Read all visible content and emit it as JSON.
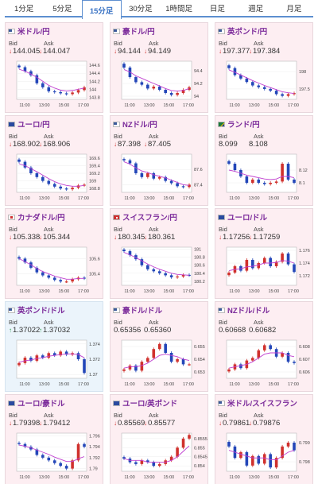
{
  "tabs": [
    "1分足",
    "5分足",
    "15分足",
    "30分足",
    "1時間足",
    "日足",
    "週足",
    "月足"
  ],
  "active_tab": 2,
  "labels": {
    "bid": "Bid",
    "ask": "Ask"
  },
  "time_ticks": [
    "11:00",
    "13:00",
    "15:00",
    "17:00"
  ],
  "colors": {
    "up": "#d0312d",
    "down": "#2346b8",
    "ma": "#c040d0",
    "price_up": "#2a9d4a",
    "price_down": "#d0312d",
    "title": "#7b2a9a",
    "card_bg": "#fdeef2",
    "card_bg_highlight": "#ebf4fb"
  },
  "cards": [
    {
      "title": "米ドル/円",
      "flag": "us",
      "dir": "down",
      "bid": "144.045",
      "ask": "144.047",
      "ticks": [
        "144.6",
        "144.4",
        "144.2",
        "144",
        "143.8"
      ],
      "ymin": 143.75,
      "ymax": 144.7,
      "prices": [
        144.55,
        144.45,
        144.35,
        144.15,
        144.05,
        143.95,
        143.93,
        143.9,
        143.88,
        143.92,
        143.98,
        144.05
      ],
      "ma": [
        144.5,
        144.45,
        144.38,
        144.3,
        144.2,
        144.1,
        144.03,
        143.98,
        143.96,
        143.97,
        144.0,
        144.03
      ]
    },
    {
      "title": "豪ドル/円",
      "flag": "au",
      "dir": "down",
      "bid": "94.144",
      "ask": "94.149",
      "ticks": [
        "94.4",
        "94.2",
        "94"
      ],
      "ymin": 93.95,
      "ymax": 94.55,
      "prices": [
        94.45,
        94.3,
        94.22,
        94.18,
        94.12,
        94.15,
        94.1,
        94.05,
        94.02,
        94.05,
        94.1,
        94.14
      ],
      "ma": [
        94.42,
        94.38,
        94.32,
        94.28,
        94.24,
        94.2,
        94.16,
        94.12,
        94.09,
        94.08,
        94.09,
        94.12
      ]
    },
    {
      "title": "英ポンド/円",
      "flag": "uk",
      "dir": "down",
      "bid": "197.377",
      "ask": "197.384",
      "ticks": [
        "198",
        "197.5"
      ],
      "ymin": 197.2,
      "ymax": 198.3,
      "prices": [
        198.1,
        197.9,
        197.8,
        197.7,
        197.6,
        197.55,
        197.5,
        197.45,
        197.35,
        197.3,
        197.35,
        197.38
      ],
      "ma": [
        198.05,
        197.98,
        197.9,
        197.82,
        197.74,
        197.67,
        197.6,
        197.54,
        197.48,
        197.42,
        197.39,
        197.37
      ]
    },
    {
      "title": "ユーロ/円",
      "flag": "eu",
      "dir": "down",
      "bid": "168.902",
      "ask": "168.906",
      "ticks": [
        "169.6",
        "169.4",
        "169.2",
        "169",
        "168.8"
      ],
      "ymin": 168.7,
      "ymax": 169.7,
      "prices": [
        169.5,
        169.35,
        169.2,
        169.1,
        169.0,
        168.92,
        168.85,
        168.8,
        168.78,
        168.82,
        168.88,
        168.9
      ],
      "ma": [
        169.45,
        169.4,
        169.32,
        169.24,
        169.15,
        169.06,
        168.98,
        168.92,
        168.88,
        168.86,
        168.86,
        168.88
      ]
    },
    {
      "title": "NZドル/円",
      "flag": "nz",
      "dir": "down",
      "bid": "87.398",
      "ask": "87.405",
      "ticks": [
        "87.6",
        "87.4"
      ],
      "ymin": 87.3,
      "ymax": 87.8,
      "prices": [
        87.72,
        87.68,
        87.55,
        87.5,
        87.55,
        87.48,
        87.5,
        87.45,
        87.42,
        87.38,
        87.37,
        87.4
      ],
      "ma": [
        87.7,
        87.67,
        87.62,
        87.58,
        87.56,
        87.53,
        87.51,
        87.49,
        87.46,
        87.43,
        87.4,
        87.39
      ]
    },
    {
      "title": "ランド/円",
      "flag": "za",
      "dir": "none",
      "bid": "8.099",
      "ask": "8.108",
      "ticks": [
        "8.12",
        "8.1"
      ],
      "ymin": 8.085,
      "ymax": 8.145,
      "prices": [
        8.13,
        8.12,
        8.11,
        8.1,
        8.105,
        8.1,
        8.098,
        8.1,
        8.102,
        8.13,
        8.105,
        8.1
      ],
      "ma": [
        8.12,
        8.118,
        8.115,
        8.112,
        8.11,
        8.108,
        8.106,
        8.105,
        8.106,
        8.11,
        8.11,
        8.108
      ]
    },
    {
      "title": "カナダドル/円",
      "flag": "ca",
      "dir": "down",
      "bid": "105.338",
      "ask": "105.344",
      "ticks": [
        "105.6",
        "105.4"
      ],
      "ymin": 105.25,
      "ymax": 105.75,
      "prices": [
        105.6,
        105.55,
        105.48,
        105.42,
        105.38,
        105.35,
        105.32,
        105.3,
        105.3,
        105.33,
        105.35,
        105.34
      ],
      "ma": [
        105.6,
        105.56,
        105.52,
        105.47,
        105.43,
        105.4,
        105.37,
        105.35,
        105.33,
        105.33,
        105.34,
        105.34
      ]
    },
    {
      "title": "スイスフラン/円",
      "flag": "ch",
      "dir": "down",
      "bid": "180.345",
      "ask": "180.361",
      "ticks": [
        "181",
        "180.8",
        "180.6",
        "180.4",
        "180.2"
      ],
      "ymin": 180.1,
      "ymax": 181.05,
      "prices": [
        180.95,
        180.85,
        180.75,
        180.6,
        180.5,
        180.45,
        180.4,
        180.35,
        180.3,
        180.32,
        180.36,
        180.35
      ],
      "ma": [
        180.92,
        180.86,
        180.79,
        180.71,
        180.63,
        180.56,
        180.5,
        180.45,
        180.4,
        180.37,
        180.36,
        180.35
      ]
    },
    {
      "title": "ユーロ/ドル",
      "flag": "eu",
      "dir": "down",
      "bid": "1.17256",
      "ask": "1.17259",
      "ticks": [
        "1.176",
        "1.174",
        "1.172"
      ],
      "ymin": 1.1705,
      "ymax": 1.1765,
      "prices": [
        1.1725,
        1.1735,
        1.1728,
        1.1745,
        1.1732,
        1.174,
        1.1748,
        1.1735,
        1.1742,
        1.1755,
        1.1738,
        1.1726
      ],
      "ma": [
        1.1728,
        1.173,
        1.1731,
        1.1734,
        1.1735,
        1.1737,
        1.174,
        1.174,
        1.1741,
        1.1744,
        1.1743,
        1.174
      ]
    },
    {
      "title": "英ポンド/ドル",
      "flag": "uk",
      "dir": "up",
      "bid": "1.37022",
      "ask": "1.37032",
      "ticks": [
        "1.374",
        "1.372",
        "1.37"
      ],
      "ymin": 1.3695,
      "ymax": 1.3745,
      "prices": [
        1.3715,
        1.3722,
        1.3718,
        1.3725,
        1.3722,
        1.3728,
        1.3725,
        1.373,
        1.3726,
        1.3728,
        1.372,
        1.3702
      ],
      "ma": [
        1.3716,
        1.3718,
        1.3719,
        1.3721,
        1.3722,
        1.3724,
        1.3725,
        1.3726,
        1.3727,
        1.3727,
        1.3726,
        1.3722
      ]
    },
    {
      "title": "豪ドル/ドル",
      "flag": "au",
      "dir": "none",
      "bid": "0.65356",
      "ask": "0.65360",
      "ticks": [
        "0.655",
        "0.654",
        "0.653"
      ],
      "ymin": 0.6525,
      "ymax": 0.6555,
      "prices": [
        0.6532,
        0.6535,
        0.6531,
        0.6538,
        0.6541,
        0.6548,
        0.6552,
        0.6545,
        0.6538,
        0.654,
        0.6536,
        0.6536
      ],
      "ma": [
        0.6533,
        0.6534,
        0.6534,
        0.6535,
        0.6537,
        0.654,
        0.6543,
        0.6544,
        0.6543,
        0.6542,
        0.654,
        0.6539
      ]
    },
    {
      "title": "NZドル/ドル",
      "flag": "nz",
      "dir": "none",
      "bid": "0.60668",
      "ask": "0.60682",
      "ticks": [
        "0.608",
        "0.607",
        "0.606"
      ],
      "ymin": 0.6055,
      "ymax": 0.6085,
      "prices": [
        0.6062,
        0.6066,
        0.6063,
        0.6069,
        0.6071,
        0.6077,
        0.6081,
        0.6078,
        0.6072,
        0.6075,
        0.6068,
        0.6067
      ],
      "ma": [
        0.6063,
        0.6064,
        0.6065,
        0.6066,
        0.6068,
        0.6071,
        0.6074,
        0.6075,
        0.6075,
        0.6075,
        0.6073,
        0.6072
      ]
    },
    {
      "title": "ユーロ/豪ドル",
      "flag": "eu",
      "dir": "down",
      "bid": "1.79398",
      "ask": "1.79412",
      "ticks": [
        "1.796",
        "1.794",
        "1.792",
        "1.79"
      ],
      "ymin": 1.7895,
      "ymax": 1.7965,
      "prices": [
        1.7945,
        1.794,
        1.7935,
        1.7925,
        1.792,
        1.7915,
        1.791,
        1.7905,
        1.79,
        1.7915,
        1.7945,
        1.794
      ],
      "ma": [
        1.7943,
        1.7941,
        1.7938,
        1.7934,
        1.793,
        1.7926,
        1.7921,
        1.7917,
        1.7913,
        1.7913,
        1.7918,
        1.7922
      ]
    },
    {
      "title": "ユーロ/英ポンド",
      "flag": "eu",
      "dir": "down",
      "bid": "0.85569",
      "ask": "0.85577",
      "ticks": [
        "0.8555",
        "0.855",
        "0.8545",
        "0.854"
      ],
      "ymin": 0.8537,
      "ymax": 0.8558,
      "prices": [
        0.8544,
        0.8542,
        0.8541,
        0.8543,
        0.8542,
        0.854,
        0.8541,
        0.8543,
        0.8545,
        0.855,
        0.8555,
        0.8557
      ],
      "ma": [
        0.8544,
        0.8543,
        0.8543,
        0.8543,
        0.8542,
        0.8542,
        0.8542,
        0.8542,
        0.8543,
        0.8545,
        0.8548,
        0.8551
      ]
    },
    {
      "title": "米ドル/スイスフラン",
      "flag": "us",
      "dir": "down",
      "bid": "0.79861",
      "ask": "0.79876",
      "ticks": [
        "0.799",
        "0.798"
      ],
      "ymin": 0.7975,
      "ymax": 0.7995,
      "prices": [
        0.7988,
        0.7982,
        0.7985,
        0.7978,
        0.7983,
        0.7979,
        0.7984,
        0.7977,
        0.7982,
        0.7988,
        0.799,
        0.7986
      ],
      "ma": [
        0.7986,
        0.7985,
        0.7984,
        0.7983,
        0.7982,
        0.7982,
        0.7982,
        0.7981,
        0.7981,
        0.7983,
        0.7985,
        0.7986
      ]
    }
  ]
}
